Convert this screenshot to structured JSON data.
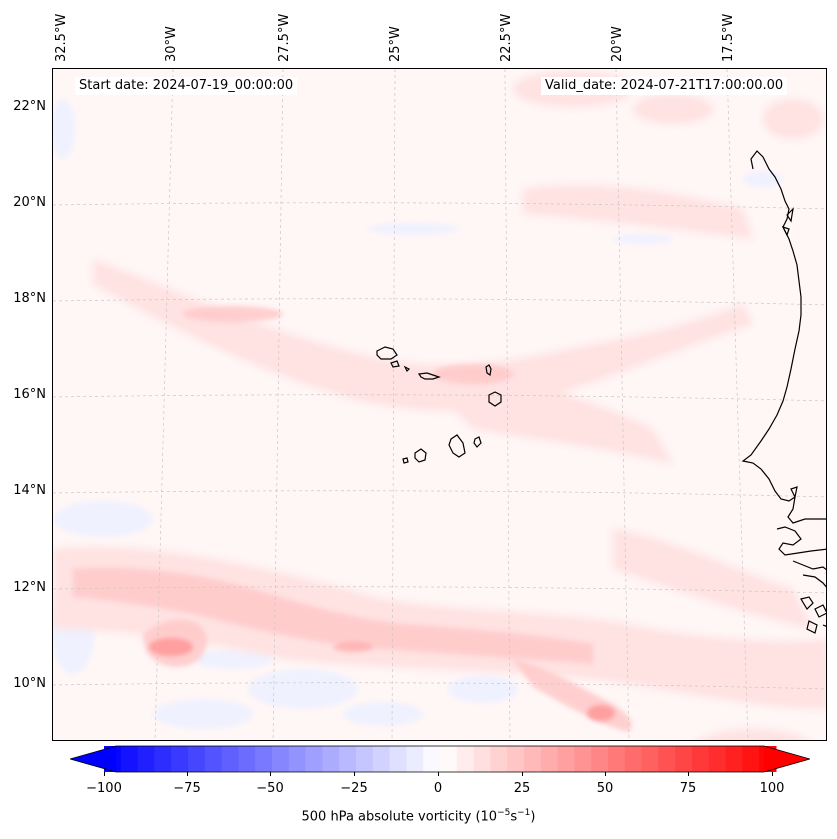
{
  "header": {
    "start_date": "Start date: 2024-07-19_00:00:00",
    "valid_date": "Valid_date: 2024-07-21T17:00:00.00"
  },
  "axes": {
    "longitude_labels": [
      "32.5°W",
      "30°W",
      "27.5°W",
      "25°W",
      "22.5°W",
      "20°W",
      "17.5°W"
    ],
    "latitude_labels": [
      "22°N",
      "20°N",
      "18°N",
      "16°N",
      "14°N",
      "12°N",
      "10°N"
    ],
    "lon_range": [
      -33.0,
      -15.0
    ],
    "lat_range": [
      8.8,
      22.8
    ]
  },
  "colorbar": {
    "title_main": "500 hPa absolute vorticity (10",
    "title_exp1": "−5",
    "title_mid": "s",
    "title_exp2": "−1",
    "title_end": ")",
    "ticks": [
      "−100",
      "−75",
      "−50",
      "−25",
      "0",
      "25",
      "50",
      "75",
      "100"
    ],
    "tick_values": [
      -100,
      -75,
      -50,
      -25,
      0,
      25,
      50,
      75,
      100
    ],
    "range": [
      -100,
      100
    ],
    "min_color": "#0000ff",
    "mid_color": "#ffffff",
    "max_color": "#ff0000"
  },
  "colors": {
    "coastline": "#000000",
    "gridline": "#c8c8c8",
    "background": "#fff7f7",
    "weak_positive": "#ffe4e4",
    "moderate_positive": "#ffc8c8",
    "strong_positive": "#ff9a9a",
    "weak_negative": "#eef0ff"
  }
}
